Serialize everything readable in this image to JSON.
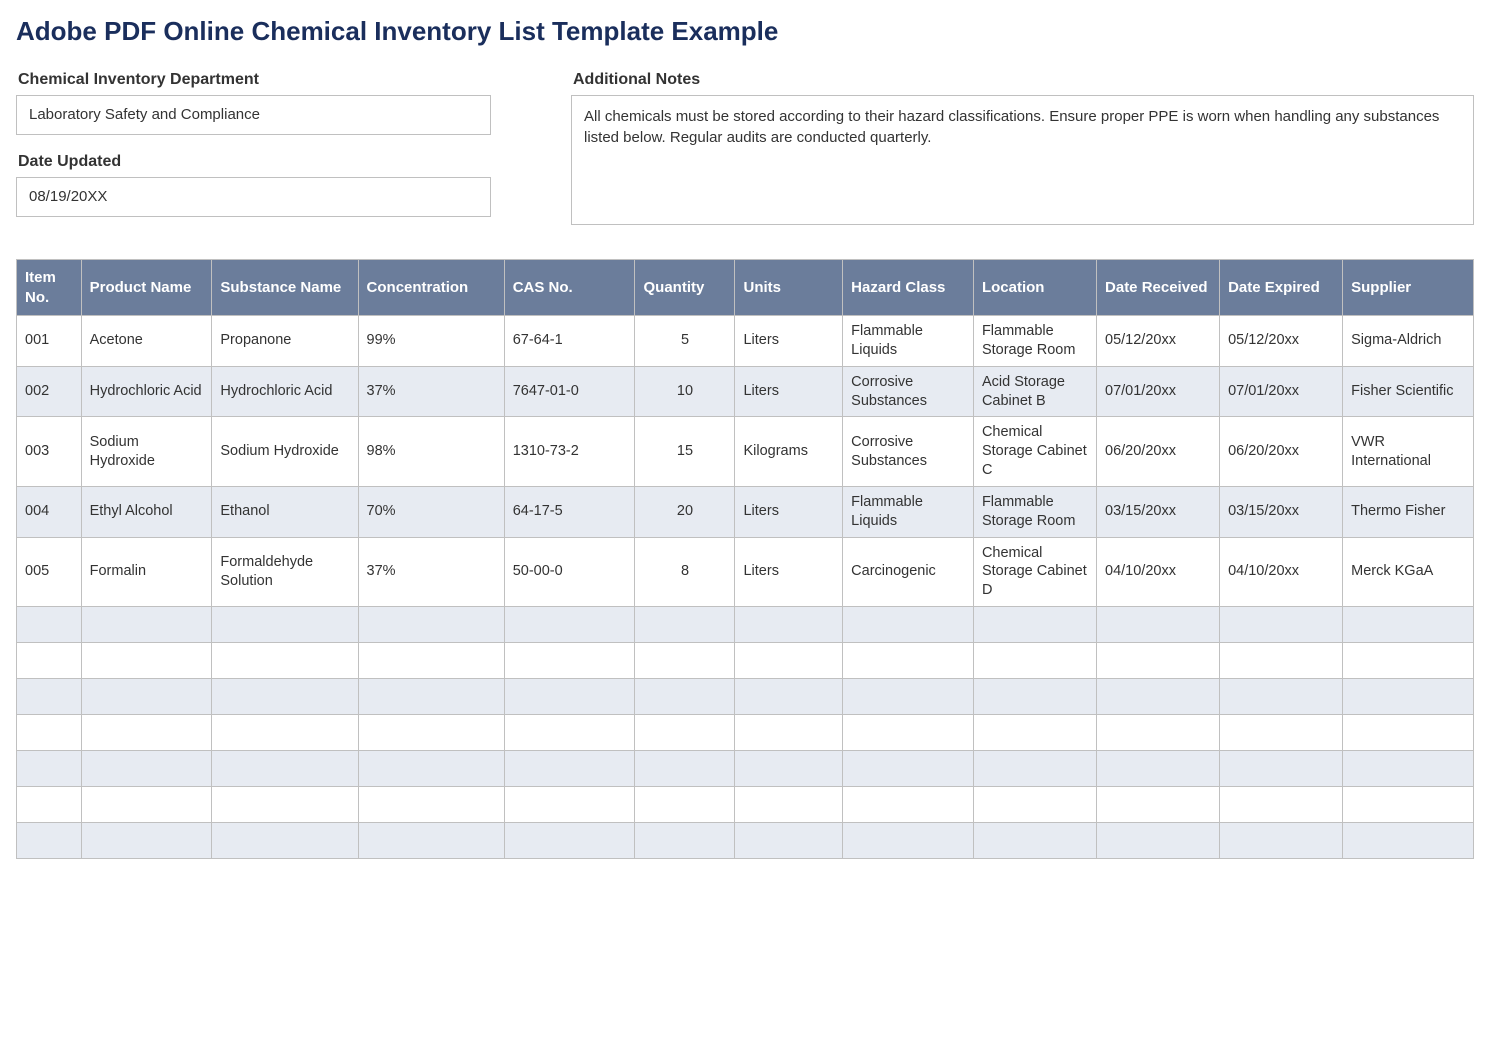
{
  "title": "Adobe PDF Online Chemical Inventory List Template Example",
  "meta": {
    "department_label": "Chemical Inventory Department",
    "department_value": "Laboratory Safety and Compliance",
    "date_updated_label": "Date Updated",
    "date_updated_value": "08/19/20XX",
    "notes_label": "Additional Notes",
    "notes_value": "All chemicals must be stored according to their hazard classifications. Ensure proper PPE is worn when handling any substances listed below. Regular audits are conducted quarterly."
  },
  "table": {
    "columns": [
      {
        "key": "item_no",
        "label": "Item No.",
        "width": "4.2%"
      },
      {
        "key": "product_name",
        "label": "Product Name",
        "width": "8.5%"
      },
      {
        "key": "substance_name",
        "label": "Substance Name",
        "width": "9.5%"
      },
      {
        "key": "concentration",
        "label": "Concentration",
        "width": "9.5%"
      },
      {
        "key": "cas_no",
        "label": "CAS No.",
        "width": "8.5%"
      },
      {
        "key": "quantity",
        "label": "Quantity",
        "width": "6.5%"
      },
      {
        "key": "units",
        "label": "Units",
        "width": "7%"
      },
      {
        "key": "hazard_class",
        "label": "Hazard Class",
        "width": "8.5%"
      },
      {
        "key": "location",
        "label": "Location",
        "width": "8%"
      },
      {
        "key": "date_received",
        "label": "Date Received",
        "width": "8%"
      },
      {
        "key": "date_expired",
        "label": "Date Expired",
        "width": "8%"
      },
      {
        "key": "supplier",
        "label": "Supplier",
        "width": "8.5%"
      }
    ],
    "rows": [
      {
        "item_no": "001",
        "product_name": "Acetone",
        "substance_name": "Propanone",
        "concentration": "99%",
        "cas_no": "67-64-1",
        "quantity": "5",
        "units": "Liters",
        "hazard_class": "Flammable Liquids",
        "location": "Flammable Storage Room",
        "date_received": "05/12/20xx",
        "date_expired": "05/12/20xx",
        "supplier": "Sigma-Aldrich"
      },
      {
        "item_no": "002",
        "product_name": "Hydrochloric Acid",
        "substance_name": "Hydrochloric Acid",
        "concentration": "37%",
        "cas_no": "7647-01-0",
        "quantity": "10",
        "units": "Liters",
        "hazard_class": "Corrosive Substances",
        "location": "Acid Storage Cabinet B",
        "date_received": "07/01/20xx",
        "date_expired": "07/01/20xx",
        "supplier": "Fisher Scientific"
      },
      {
        "item_no": "003",
        "product_name": "Sodium Hydroxide",
        "substance_name": "Sodium Hydroxide",
        "concentration": "98%",
        "cas_no": "1310-73-2",
        "quantity": "15",
        "units": "Kilograms",
        "hazard_class": "Corrosive Substances",
        "location": "Chemical Storage Cabinet C",
        "date_received": "06/20/20xx",
        "date_expired": "06/20/20xx",
        "supplier": "VWR International"
      },
      {
        "item_no": "004",
        "product_name": "Ethyl Alcohol",
        "substance_name": "Ethanol",
        "concentration": "70%",
        "cas_no": "64-17-5",
        "quantity": "20",
        "units": "Liters",
        "hazard_class": "Flammable Liquids",
        "location": "Flammable Storage Room",
        "date_received": "03/15/20xx",
        "date_expired": "03/15/20xx",
        "supplier": "Thermo Fisher"
      },
      {
        "item_no": "005",
        "product_name": "Formalin",
        "substance_name": "Formaldehyde Solution",
        "concentration": "37%",
        "cas_no": "50-00-0",
        "quantity": "8",
        "units": "Liters",
        "hazard_class": "Carcinogenic",
        "location": "Chemical Storage Cabinet D",
        "date_received": "04/10/20xx",
        "date_expired": "04/10/20xx",
        "supplier": "Merck KGaA"
      }
    ],
    "empty_rows": 7,
    "header_bg": "#6b7d9b",
    "header_fg": "#ffffff",
    "row_even_bg": "#e7ebf2",
    "row_odd_bg": "#ffffff",
    "border_color": "#c0c0c0"
  },
  "title_color": "#1a2e5c"
}
